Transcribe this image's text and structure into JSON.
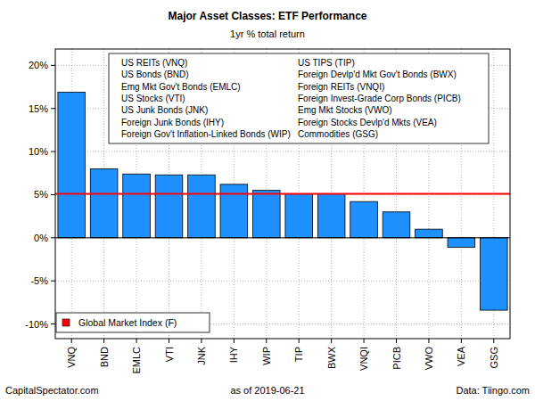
{
  "chart_data": {
    "type": "bar",
    "title": "Major Asset Classes: ETF Performance",
    "subtitle": "1yr % total return",
    "categories": [
      "VNQ",
      "BND",
      "EMLC",
      "VTI",
      "JNK",
      "IHY",
      "WIP",
      "TIP",
      "BWX",
      "VNQI",
      "PICB",
      "VWO",
      "VEA",
      "GSG"
    ],
    "values": [
      16.9,
      8.0,
      7.4,
      7.3,
      7.3,
      6.2,
      5.5,
      5.1,
      5.1,
      4.2,
      3.0,
      1.0,
      -1.1,
      -8.4
    ],
    "color": "#1e90ff",
    "asset_names": [
      "US REITs (VNQ)",
      "US Bonds (BND)",
      "Emg Mkt Gov't Bonds (EMLC)",
      "US Stocks (VTI)",
      "US Junk Bonds (JNK)",
      "Foreign Junk Bonds (IHY)",
      "Foreign Gov't Inflation-Linked Bonds (WIP)",
      "US TIPS (TIP)",
      "Foreign Devlp'd Mkt Gov't Bonds (BWX)",
      "Foreign REITs (VNQI)",
      "Foreign Invest-Grade Corp Bonds (PICB)",
      "Emg Mkt Stocks (VWO)",
      "Foreign Stocks Devlp'd Mkts (VEA)",
      "Commodities (GSG)"
    ],
    "reference_line": {
      "name": "Global Market Index (F)",
      "value": 5.1,
      "color": "#ff0000"
    },
    "ylim": [
      -11.7,
      21.9
    ],
    "yticks": [
      {
        "value": -10,
        "label": "-10%"
      },
      {
        "value": -5,
        "label": "-5%"
      },
      {
        "value": 0,
        "label": "0%"
      },
      {
        "value": 5,
        "label": "5%"
      },
      {
        "value": 10,
        "label": "10%"
      },
      {
        "value": 15,
        "label": "15%"
      },
      {
        "value": 20,
        "label": "20%"
      }
    ],
    "grid": true,
    "footer_left": "CapitalSpectator.com",
    "footer_center": "as of 2019-06-21",
    "footer_right": "Data: Tiingo.com"
  }
}
